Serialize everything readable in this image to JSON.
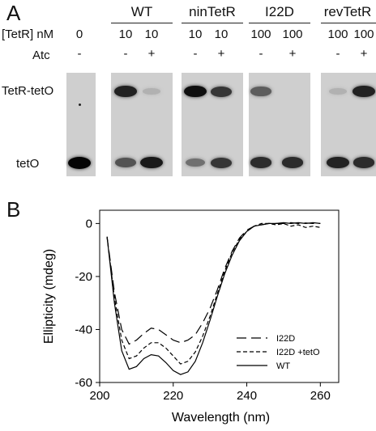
{
  "panel_a": {
    "letter": "A",
    "row_labels": {
      "concentration": "[TetR] nM",
      "atc": "Atc"
    },
    "band_labels": {
      "complex": "TetR-tetO",
      "free": "tetO"
    },
    "groups": [
      {
        "name": "WT"
      },
      {
        "name": "ninTetR"
      },
      {
        "name": "I22D"
      },
      {
        "name": "revTetR"
      }
    ],
    "lanes": [
      {
        "conc": "0",
        "atc": "-",
        "complex": 0.0,
        "free": 1.0
      },
      {
        "conc": "10",
        "atc": "-",
        "complex": 0.85,
        "free": 0.6
      },
      {
        "conc": "10",
        "atc": "+",
        "complex": 0.12,
        "free": 0.9
      },
      {
        "conc": "10",
        "atc": "-",
        "complex": 0.95,
        "free": 0.45
      },
      {
        "conc": "10",
        "atc": "+",
        "complex": 0.75,
        "free": 0.75
      },
      {
        "conc": "100",
        "atc": "-",
        "complex": 0.55,
        "free": 0.8
      },
      {
        "conc": "100",
        "atc": "+",
        "complex": 0.0,
        "free": 0.8
      },
      {
        "conc": "100",
        "atc": "-",
        "complex": 0.12,
        "free": 0.85
      },
      {
        "conc": "100",
        "atc": "+",
        "complex": 0.85,
        "free": 0.8
      }
    ]
  },
  "panel_b": {
    "letter": "B"
  },
  "chart_data": {
    "type": "line",
    "xlabel": "Wavelength (nm)",
    "ylabel": "Ellipticity (mdeg)",
    "xlim": [
      200,
      265
    ],
    "ylim": [
      -60,
      5
    ],
    "xticks": [
      200,
      220,
      240,
      260
    ],
    "yticks": [
      0,
      -20,
      -40,
      -60
    ],
    "legend": "lower-right",
    "series": [
      {
        "name": "I22D",
        "style": "long-dash",
        "x": [
          202,
          204,
          206,
          208,
          210,
          212,
          214,
          216,
          218,
          220,
          222,
          224,
          226,
          228,
          230,
          232,
          234,
          236,
          238,
          240,
          242,
          244,
          246,
          248,
          250,
          252,
          254,
          256,
          258,
          260
        ],
        "y": [
          -5,
          -26,
          -40,
          -45.5,
          -44,
          -41.5,
          -39.5,
          -40,
          -42,
          -44,
          -45,
          -44,
          -42,
          -37.5,
          -32,
          -25,
          -17,
          -10.5,
          -5.5,
          -2.5,
          -1,
          -0.5,
          0,
          0,
          0,
          0.3,
          0,
          0.2,
          0,
          0
        ]
      },
      {
        "name": "I22D +tetO",
        "style": "short-dash",
        "x": [
          202,
          204,
          206,
          208,
          210,
          212,
          214,
          216,
          218,
          220,
          222,
          224,
          226,
          228,
          230,
          232,
          234,
          236,
          238,
          240,
          242,
          244,
          246,
          248,
          250,
          252,
          254,
          256,
          258,
          260
        ],
        "y": [
          -5,
          -28,
          -44,
          -51,
          -50,
          -47,
          -45,
          -45,
          -47,
          -50,
          -53,
          -52,
          -48.5,
          -42.5,
          -35,
          -26.5,
          -18,
          -11,
          -6,
          -3,
          -1,
          0,
          0,
          -0.5,
          0,
          -1,
          -0.5,
          -1.5,
          -1,
          -1.5
        ]
      },
      {
        "name": "WT",
        "style": "solid",
        "x": [
          202,
          204,
          206,
          208,
          210,
          212,
          214,
          216,
          218,
          220,
          222,
          224,
          226,
          228,
          230,
          232,
          234,
          236,
          238,
          240,
          242,
          244,
          246,
          248,
          250,
          252,
          254,
          256,
          258,
          260
        ],
        "y": [
          -5,
          -30,
          -48,
          -55,
          -54,
          -51,
          -49.5,
          -50,
          -52.5,
          -55.5,
          -57,
          -56,
          -52,
          -45,
          -36.5,
          -27.5,
          -19,
          -12,
          -6.5,
          -3,
          -1,
          -0.5,
          0,
          0,
          0.3,
          0,
          0.3,
          0,
          0.3,
          0
        ]
      }
    ]
  }
}
